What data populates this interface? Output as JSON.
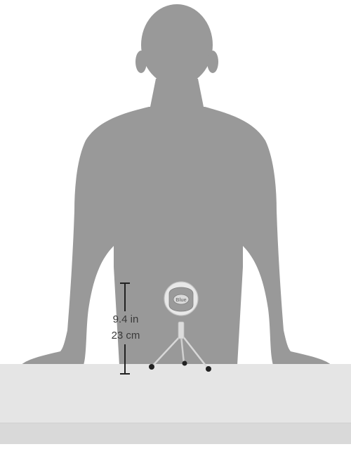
{
  "measurement": {
    "height_in": "9.4 in",
    "height_cm": "23 cm"
  },
  "product": {
    "logo_text": "Blue"
  },
  "colors": {
    "silhouette": "#999999",
    "table_top": "#e5e5e5",
    "table_front": "#d9d9d9",
    "microphone_body": "#e8e8e8",
    "microphone_grille": "#9a9a9a",
    "dimension_marker": "#222222"
  }
}
